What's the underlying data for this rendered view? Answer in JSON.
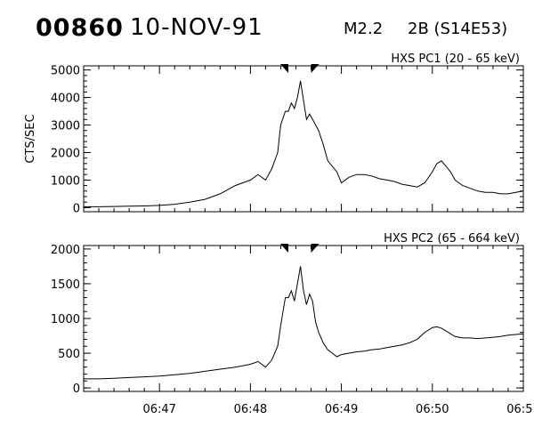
{
  "header": {
    "event_id": "00860",
    "date": "10-NOV-91",
    "flare_class": "M2.2",
    "flare_location": "2B (S14E53)"
  },
  "chart_data": [
    {
      "type": "line",
      "title": "HXS PC1 (20 - 65 keV)",
      "ylabel": "CTS/SEC",
      "xlabel": "",
      "xlim": [
        "06:46:10",
        "06:51:00"
      ],
      "ylim": [
        -150,
        5150
      ],
      "yticks": [
        0,
        1000,
        2000,
        3000,
        4000,
        5000
      ],
      "xticks": [
        "06:47",
        "06:48",
        "06:49",
        "06:50",
        "06:51"
      ],
      "markers": [
        "06:48:25",
        "06:48:40"
      ],
      "grid": false,
      "series": [
        {
          "x": [
            "06:46:10",
            "06:46:20",
            "06:46:30",
            "06:46:40",
            "06:46:50",
            "06:47:00",
            "06:47:10",
            "06:47:20",
            "06:47:30",
            "06:47:40",
            "06:47:50",
            "06:48:00",
            "06:48:05",
            "06:48:10",
            "06:48:14",
            "06:48:18",
            "06:48:20",
            "06:48:23",
            "06:48:25",
            "06:48:27",
            "06:48:29",
            "06:48:31",
            "06:48:33",
            "06:48:35",
            "06:48:37",
            "06:48:39",
            "06:48:41",
            "06:48:43",
            "06:48:45",
            "06:48:48",
            "06:48:51",
            "06:48:54",
            "06:48:57",
            "06:49:00",
            "06:49:05",
            "06:49:10",
            "06:49:15",
            "06:49:20",
            "06:49:25",
            "06:49:30",
            "06:49:35",
            "06:49:40",
            "06:49:45",
            "06:49:50",
            "06:49:55",
            "06:50:00",
            "06:50:03",
            "06:50:06",
            "06:50:09",
            "06:50:12",
            "06:50:15",
            "06:50:20",
            "06:50:25",
            "06:50:30",
            "06:50:35",
            "06:50:40",
            "06:50:45",
            "06:50:50",
            "06:50:55",
            "06:51:00"
          ],
          "y": [
            30,
            30,
            40,
            50,
            60,
            80,
            120,
            200,
            300,
            500,
            800,
            1000,
            1200,
            1000,
            1400,
            2000,
            3000,
            3500,
            3500,
            3800,
            3600,
            4000,
            4600,
            3900,
            3200,
            3400,
            3200,
            3000,
            2800,
            2300,
            1700,
            1500,
            1300,
            900,
            1100,
            1200,
            1200,
            1150,
            1050,
            1000,
            950,
            850,
            800,
            750,
            900,
            1300,
            1600,
            1700,
            1500,
            1300,
            1000,
            800,
            700,
            600,
            550,
            550,
            500,
            500,
            550,
            600
          ]
        }
      ]
    },
    {
      "type": "line",
      "title": "HXS PC2 (65 - 664 keV)",
      "ylabel": "",
      "xlabel": "",
      "xlim": [
        "06:46:10",
        "06:51:00"
      ],
      "ylim": [
        -50,
        2050
      ],
      "yticks": [
        0,
        500,
        1000,
        1500,
        2000
      ],
      "xticks": [
        "06:47",
        "06:48",
        "06:49",
        "06:50",
        "06:51"
      ],
      "markers": [
        "06:48:25",
        "06:48:40"
      ],
      "grid": false,
      "series": [
        {
          "x": [
            "06:46:10",
            "06:46:20",
            "06:46:30",
            "06:46:40",
            "06:46:50",
            "06:47:00",
            "06:47:10",
            "06:47:20",
            "06:47:30",
            "06:47:40",
            "06:47:50",
            "06:48:00",
            "06:48:05",
            "06:48:10",
            "06:48:14",
            "06:48:18",
            "06:48:20",
            "06:48:23",
            "06:48:25",
            "06:48:27",
            "06:48:29",
            "06:48:31",
            "06:48:33",
            "06:48:35",
            "06:48:37",
            "06:48:39",
            "06:48:41",
            "06:48:43",
            "06:48:45",
            "06:48:48",
            "06:48:51",
            "06:48:54",
            "06:48:57",
            "06:49:00",
            "06:49:05",
            "06:49:10",
            "06:49:15",
            "06:49:20",
            "06:49:25",
            "06:49:30",
            "06:49:35",
            "06:49:40",
            "06:49:45",
            "06:49:50",
            "06:49:55",
            "06:50:00",
            "06:50:03",
            "06:50:06",
            "06:50:09",
            "06:50:12",
            "06:50:15",
            "06:50:20",
            "06:50:25",
            "06:50:30",
            "06:50:35",
            "06:50:40",
            "06:50:45",
            "06:50:50",
            "06:50:55",
            "06:51:00"
          ],
          "y": [
            130,
            130,
            140,
            150,
            160,
            170,
            190,
            210,
            240,
            270,
            300,
            340,
            380,
            300,
            400,
            600,
            900,
            1300,
            1300,
            1400,
            1250,
            1500,
            1750,
            1400,
            1200,
            1350,
            1250,
            950,
            800,
            650,
            550,
            500,
            450,
            480,
            500,
            520,
            530,
            550,
            560,
            580,
            600,
            620,
            650,
            700,
            800,
            870,
            880,
            860,
            820,
            780,
            740,
            720,
            720,
            710,
            720,
            730,
            740,
            760,
            770,
            780
          ]
        }
      ]
    }
  ]
}
